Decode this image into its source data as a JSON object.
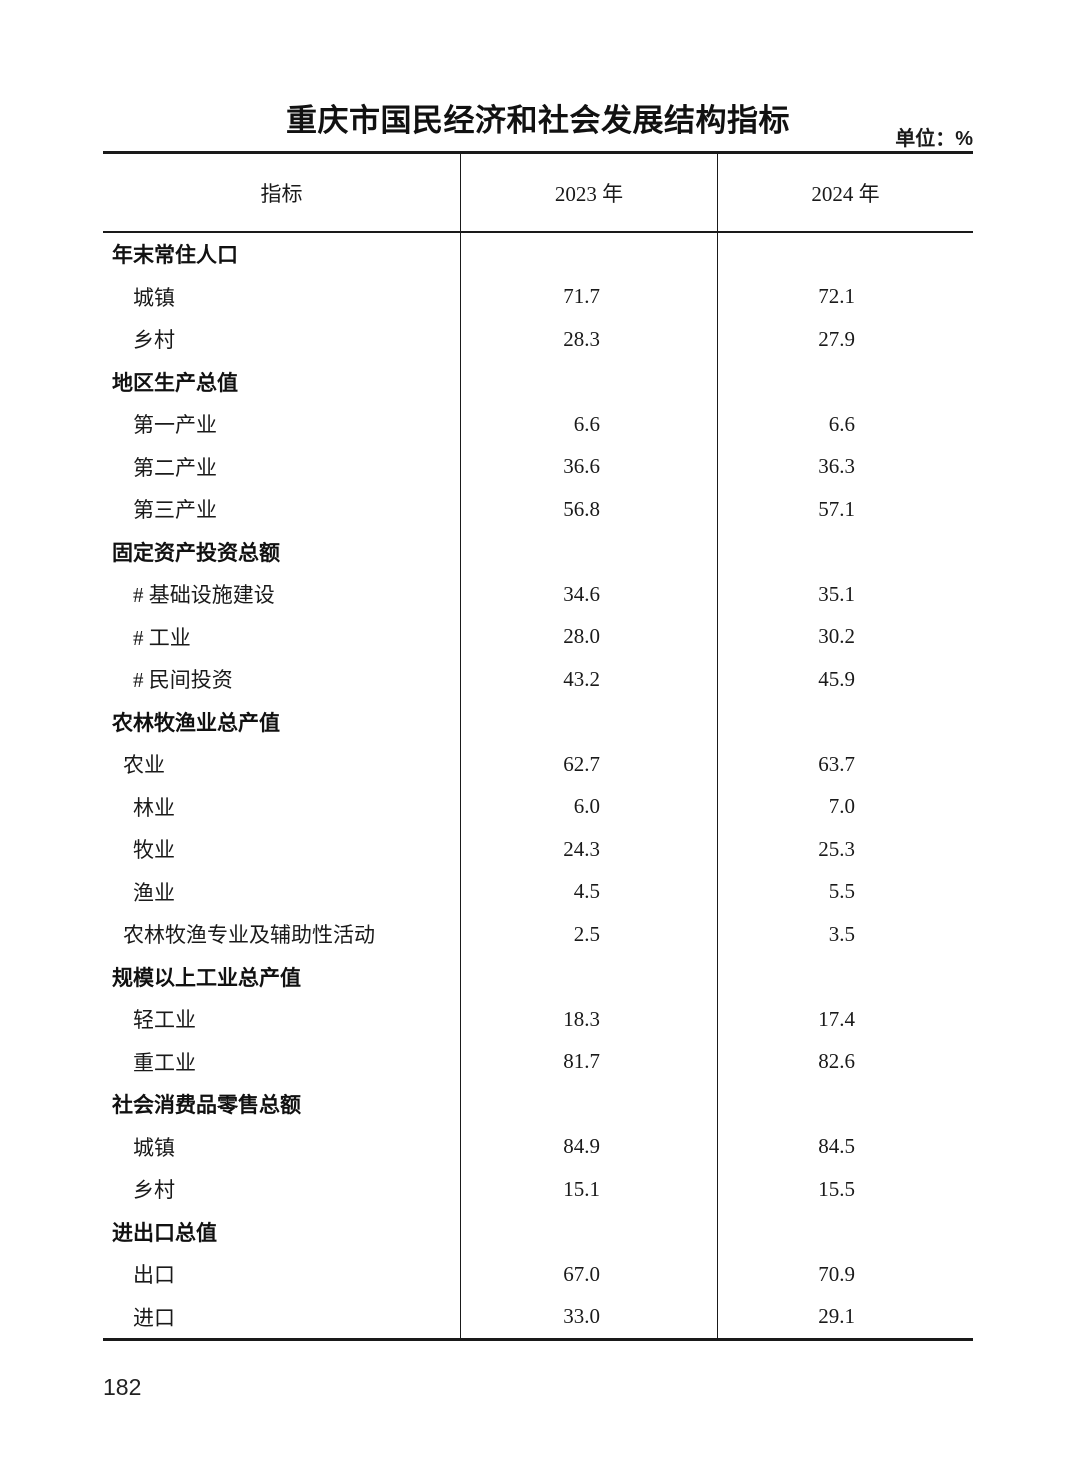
{
  "page": {
    "title": "重庆市国民经济和社会发展结构指标",
    "unit_label": "单位：%",
    "page_number": "182"
  },
  "table": {
    "columns": [
      "指标",
      "2023 年",
      "2024 年"
    ],
    "rows": [
      {
        "label": "年末常住人口",
        "type": "category",
        "v2023": "",
        "v2024": ""
      },
      {
        "label": "城镇",
        "type": "item",
        "v2023": "71.7",
        "v2024": "72.1"
      },
      {
        "label": "乡村",
        "type": "item",
        "v2023": "28.3",
        "v2024": "27.9"
      },
      {
        "label": "地区生产总值",
        "type": "category",
        "v2023": "",
        "v2024": ""
      },
      {
        "label": "第一产业",
        "type": "item",
        "v2023": "6.6",
        "v2024": "6.6"
      },
      {
        "label": "第二产业",
        "type": "item",
        "v2023": "36.6",
        "v2024": "36.3"
      },
      {
        "label": "第三产业",
        "type": "item",
        "v2023": "56.8",
        "v2024": "57.1"
      },
      {
        "label": "固定资产投资总额",
        "type": "category",
        "v2023": "",
        "v2024": ""
      },
      {
        "label": "# 基础设施建设",
        "type": "item",
        "v2023": "34.6",
        "v2024": "35.1"
      },
      {
        "label": "# 工业",
        "type": "item",
        "v2023": "28.0",
        "v2024": "30.2"
      },
      {
        "label": "# 民间投资",
        "type": "item",
        "v2023": "43.2",
        "v2024": "45.9"
      },
      {
        "label": "农林牧渔业总产值",
        "type": "category",
        "v2023": "",
        "v2024": ""
      },
      {
        "label": "农业",
        "type": "item",
        "indent": "small",
        "v2023": "62.7",
        "v2024": "63.7"
      },
      {
        "label": "林业",
        "type": "item",
        "v2023": "6.0",
        "v2024": "7.0"
      },
      {
        "label": "牧业",
        "type": "item",
        "v2023": "24.3",
        "v2024": "25.3"
      },
      {
        "label": "渔业",
        "type": "item",
        "v2023": "4.5",
        "v2024": "5.5"
      },
      {
        "label": "农林牧渔专业及辅助性活动",
        "type": "item",
        "indent": "small",
        "v2023": "2.5",
        "v2024": "3.5"
      },
      {
        "label": "规模以上工业总产值",
        "type": "category",
        "v2023": "",
        "v2024": ""
      },
      {
        "label": "轻工业",
        "type": "item",
        "v2023": "18.3",
        "v2024": "17.4"
      },
      {
        "label": "重工业",
        "type": "item",
        "v2023": "81.7",
        "v2024": "82.6"
      },
      {
        "label": "社会消费品零售总额",
        "type": "category",
        "v2023": "",
        "v2024": ""
      },
      {
        "label": "城镇",
        "type": "item",
        "v2023": "84.9",
        "v2024": "84.5"
      },
      {
        "label": "乡村",
        "type": "item",
        "v2023": "15.1",
        "v2024": "15.5"
      },
      {
        "label": "进出口总值",
        "type": "category",
        "v2023": "",
        "v2024": ""
      },
      {
        "label": "出口",
        "type": "item",
        "v2023": "67.0",
        "v2024": "70.9"
      },
      {
        "label": "进口",
        "type": "item",
        "v2023": "33.0",
        "v2024": "29.1"
      }
    ]
  }
}
